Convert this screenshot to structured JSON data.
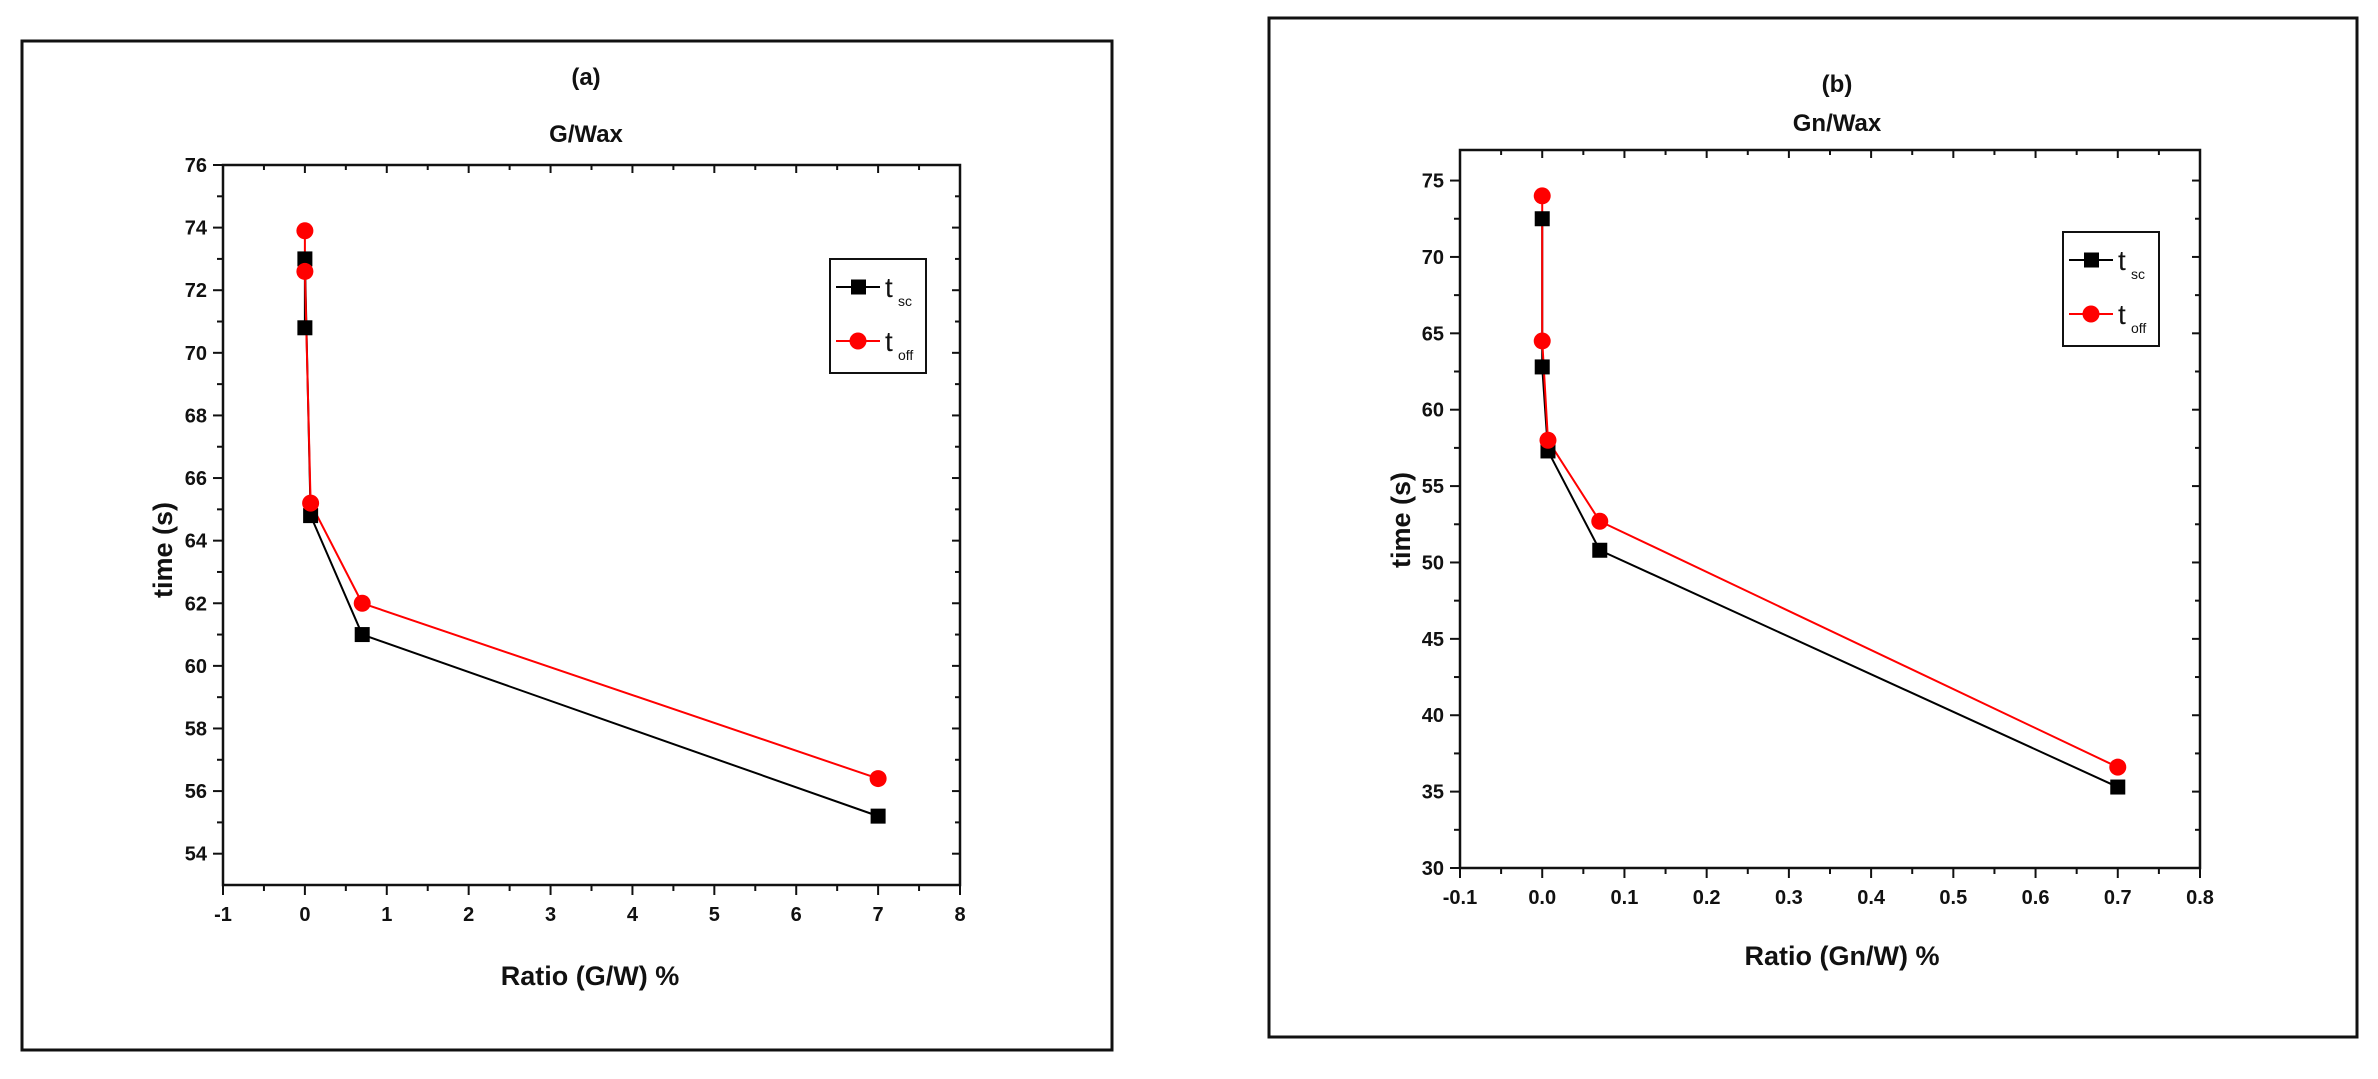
{
  "chart_data": [
    {
      "type": "line",
      "panel_label": "(a)",
      "title": "G/Wax",
      "xlabel": "Ratio (G/W) %",
      "ylabel": "time (s)",
      "xlim": [
        -1,
        8
      ],
      "ylim": [
        53,
        76
      ],
      "xticks": [
        -1,
        0,
        1,
        2,
        3,
        4,
        5,
        6,
        7,
        8
      ],
      "yticks": [
        54,
        56,
        58,
        60,
        62,
        64,
        66,
        68,
        70,
        72,
        74,
        76
      ],
      "grid": false,
      "legend_position": "top-right",
      "series": [
        {
          "name": "t",
          "sub": "sc",
          "color": "#000000",
          "marker": "square",
          "points": [
            [
              0.0,
              70.8
            ],
            [
              0.0,
              73.0
            ],
            [
              0.07,
              64.8
            ],
            [
              0.7,
              61.0
            ],
            [
              7.0,
              55.2
            ]
          ]
        },
        {
          "name": "t",
          "sub": "off",
          "color": "#ff0000",
          "marker": "circle",
          "points": [
            [
              0.0,
              73.9
            ],
            [
              0.0,
              72.6
            ],
            [
              0.07,
              65.2
            ],
            [
              0.7,
              62.0
            ],
            [
              7.0,
              56.4
            ]
          ]
        }
      ]
    },
    {
      "type": "line",
      "panel_label": "(b)",
      "title": "Gn/Wax",
      "xlabel": "Ratio (Gn/W) %",
      "ylabel": "time (s)",
      "xlim": [
        -0.1,
        0.8
      ],
      "ylim": [
        30,
        77
      ],
      "xticks": [
        -0.1,
        0.0,
        0.1,
        0.2,
        0.3,
        0.4,
        0.5,
        0.6,
        0.7,
        0.8
      ],
      "xtick_labels": [
        "-0.1",
        "0.0",
        "0.1",
        "0.2",
        "0.3",
        "0.4",
        "0.5",
        "0.6",
        "0.7",
        "0.8"
      ],
      "yticks": [
        30,
        35,
        40,
        45,
        50,
        55,
        60,
        65,
        70,
        75
      ],
      "grid": false,
      "legend_position": "top-right",
      "series": [
        {
          "name": "t",
          "sub": "sc",
          "color": "#000000",
          "marker": "square",
          "points": [
            [
              0.0,
              72.5
            ],
            [
              0.0,
              62.8
            ],
            [
              0.007,
              57.3
            ],
            [
              0.07,
              50.8
            ],
            [
              0.7,
              35.3
            ]
          ]
        },
        {
          "name": "t",
          "sub": "off",
          "color": "#ff0000",
          "marker": "circle",
          "points": [
            [
              0.0,
              74.0
            ],
            [
              0.0,
              64.5
            ],
            [
              0.007,
              58.0
            ],
            [
              0.07,
              52.7
            ],
            [
              0.7,
              36.6
            ]
          ]
        }
      ]
    }
  ]
}
